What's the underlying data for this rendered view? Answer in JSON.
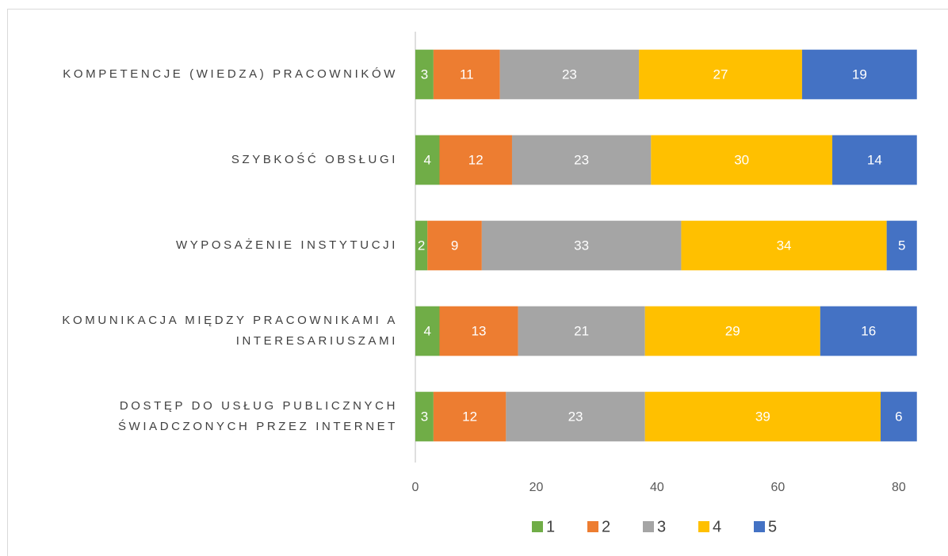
{
  "chart_data": {
    "type": "stacked-barh",
    "categories": [
      "KOMPETENCJE (WIEDZA) PRACOWNIKÓW",
      "SZYBKOŚĆ OBSŁUGI",
      "WYPOSAŻENIE INSTYTUCJI",
      "KOMUNIKACJA MIĘDZY PRACOWNIKAMI A\nINTERESARIUSZAMI",
      "DOSTĘP DO USŁUG PUBLICZNYCH\nŚWIADCZONYCH PRZEZ INTERNET"
    ],
    "series": [
      {
        "name": "1",
        "color": "#70ad47",
        "values": [
          3,
          4,
          2,
          4,
          3
        ]
      },
      {
        "name": "2",
        "color": "#ed7d31",
        "values": [
          11,
          12,
          9,
          13,
          12
        ]
      },
      {
        "name": "3",
        "color": "#a5a5a5",
        "values": [
          23,
          23,
          33,
          21,
          23
        ]
      },
      {
        "name": "4",
        "color": "#ffc000",
        "values": [
          27,
          30,
          34,
          29,
          39
        ]
      },
      {
        "name": "5",
        "color": "#4472c4",
        "values": [
          19,
          14,
          5,
          16,
          6
        ]
      }
    ],
    "xlim": [
      0,
      85
    ],
    "xticks": [
      0,
      20,
      40,
      60,
      80
    ],
    "grid": false,
    "legend": "bottom"
  }
}
